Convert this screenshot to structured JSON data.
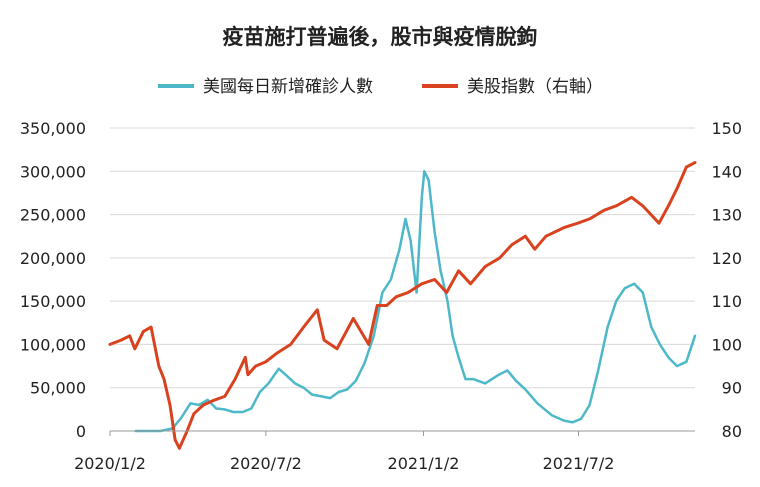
{
  "chart_data": {
    "type": "line",
    "title": "疫苗施打普遍後，股市與疫情脫鉤",
    "x_tick_labels": [
      "2020/1/2",
      "2020/7/2",
      "2021/1/2",
      "2021/7/2"
    ],
    "x_ticks": [
      "2020-01-02",
      "2020-07-02",
      "2021-01-02",
      "2021-07-02"
    ],
    "x_range": [
      "2020-01-02",
      "2021-11-15"
    ],
    "y_left": {
      "range": [
        0,
        350000
      ],
      "ticks": [
        0,
        50000,
        100000,
        150000,
        200000,
        250000,
        300000,
        350000
      ],
      "tick_labels": [
        "0",
        "50,000",
        "100,000",
        "150,000",
        "200,000",
        "250,000",
        "300,000",
        "350,000"
      ]
    },
    "y_right": {
      "range": [
        80,
        150
      ],
      "ticks": [
        80,
        90,
        100,
        110,
        120,
        130,
        140,
        150
      ],
      "tick_labels": [
        "80",
        "90",
        "100",
        "110",
        "120",
        "130",
        "140",
        "150"
      ]
    },
    "grid": "horizontal",
    "legend_position": "top-center",
    "series": [
      {
        "name": "美國每日新增確診人數",
        "axis": "left",
        "color": "#4db8c8",
        "points": [
          [
            "2020-02-01",
            0
          ],
          [
            "2020-03-01",
            0
          ],
          [
            "2020-03-15",
            3000
          ],
          [
            "2020-03-25",
            15000
          ],
          [
            "2020-04-05",
            32000
          ],
          [
            "2020-04-15",
            30000
          ],
          [
            "2020-04-25",
            36000
          ],
          [
            "2020-05-05",
            26000
          ],
          [
            "2020-05-15",
            25000
          ],
          [
            "2020-05-25",
            22000
          ],
          [
            "2020-06-05",
            22000
          ],
          [
            "2020-06-15",
            26000
          ],
          [
            "2020-06-25",
            45000
          ],
          [
            "2020-07-05",
            55000
          ],
          [
            "2020-07-17",
            72000
          ],
          [
            "2020-07-25",
            65000
          ],
          [
            "2020-08-05",
            55000
          ],
          [
            "2020-08-15",
            50000
          ],
          [
            "2020-08-25",
            42000
          ],
          [
            "2020-09-05",
            40000
          ],
          [
            "2020-09-15",
            38000
          ],
          [
            "2020-09-25",
            45000
          ],
          [
            "2020-10-05",
            48000
          ],
          [
            "2020-10-15",
            58000
          ],
          [
            "2020-10-25",
            78000
          ],
          [
            "2020-11-05",
            110000
          ],
          [
            "2020-11-15",
            160000
          ],
          [
            "2020-11-25",
            175000
          ],
          [
            "2020-12-05",
            210000
          ],
          [
            "2020-12-12",
            245000
          ],
          [
            "2020-12-18",
            220000
          ],
          [
            "2020-12-25",
            160000
          ],
          [
            "2020-12-31",
            270000
          ],
          [
            "2021-01-03",
            300000
          ],
          [
            "2021-01-08",
            290000
          ],
          [
            "2021-01-15",
            230000
          ],
          [
            "2021-01-22",
            185000
          ],
          [
            "2021-01-30",
            150000
          ],
          [
            "2021-02-05",
            110000
          ],
          [
            "2021-02-12",
            85000
          ],
          [
            "2021-02-20",
            60000
          ],
          [
            "2021-03-01",
            60000
          ],
          [
            "2021-03-15",
            55000
          ],
          [
            "2021-03-31",
            65000
          ],
          [
            "2021-04-10",
            70000
          ],
          [
            "2021-04-20",
            58000
          ],
          [
            "2021-05-01",
            48000
          ],
          [
            "2021-05-15",
            32000
          ],
          [
            "2021-06-01",
            18000
          ],
          [
            "2021-06-15",
            12000
          ],
          [
            "2021-06-25",
            10000
          ],
          [
            "2021-07-05",
            14000
          ],
          [
            "2021-07-15",
            30000
          ],
          [
            "2021-07-25",
            70000
          ],
          [
            "2021-08-05",
            120000
          ],
          [
            "2021-08-15",
            150000
          ],
          [
            "2021-08-25",
            165000
          ],
          [
            "2021-09-05",
            170000
          ],
          [
            "2021-09-15",
            160000
          ],
          [
            "2021-09-25",
            120000
          ],
          [
            "2021-10-05",
            100000
          ],
          [
            "2021-10-15",
            85000
          ],
          [
            "2021-10-25",
            75000
          ],
          [
            "2021-11-05",
            80000
          ],
          [
            "2021-11-15",
            110000
          ]
        ]
      },
      {
        "name": "美股指數（右軸）",
        "axis": "right",
        "color": "#d9421f",
        "points": [
          [
            "2020-01-02",
            100
          ],
          [
            "2020-01-15",
            101
          ],
          [
            "2020-01-25",
            102
          ],
          [
            "2020-01-31",
            99
          ],
          [
            "2020-02-10",
            103
          ],
          [
            "2020-02-19",
            104
          ],
          [
            "2020-02-28",
            95
          ],
          [
            "2020-03-05",
            92
          ],
          [
            "2020-03-12",
            86
          ],
          [
            "2020-03-18",
            78
          ],
          [
            "2020-03-23",
            76
          ],
          [
            "2020-04-01",
            80
          ],
          [
            "2020-04-09",
            84
          ],
          [
            "2020-04-20",
            86
          ],
          [
            "2020-05-01",
            87
          ],
          [
            "2020-05-15",
            88
          ],
          [
            "2020-05-27",
            92
          ],
          [
            "2020-06-08",
            97
          ],
          [
            "2020-06-11",
            93
          ],
          [
            "2020-06-20",
            95
          ],
          [
            "2020-07-02",
            96
          ],
          [
            "2020-07-15",
            98
          ],
          [
            "2020-07-31",
            100
          ],
          [
            "2020-08-15",
            104
          ],
          [
            "2020-08-31",
            108
          ],
          [
            "2020-09-08",
            101
          ],
          [
            "2020-09-23",
            99
          ],
          [
            "2020-10-12",
            106
          ],
          [
            "2020-10-30",
            100
          ],
          [
            "2020-11-09",
            109
          ],
          [
            "2020-11-20",
            109
          ],
          [
            "2020-12-01",
            111
          ],
          [
            "2020-12-15",
            112
          ],
          [
            "2020-12-31",
            114
          ],
          [
            "2021-01-15",
            115
          ],
          [
            "2021-01-29",
            112
          ],
          [
            "2021-02-12",
            117
          ],
          [
            "2021-02-26",
            114
          ],
          [
            "2021-03-15",
            118
          ],
          [
            "2021-04-01",
            120
          ],
          [
            "2021-04-15",
            123
          ],
          [
            "2021-05-01",
            125
          ],
          [
            "2021-05-12",
            122
          ],
          [
            "2021-05-25",
            125
          ],
          [
            "2021-06-15",
            127
          ],
          [
            "2021-07-01",
            128
          ],
          [
            "2021-07-15",
            129
          ],
          [
            "2021-08-01",
            131
          ],
          [
            "2021-08-15",
            132
          ],
          [
            "2021-09-02",
            134
          ],
          [
            "2021-09-15",
            132
          ],
          [
            "2021-10-04",
            128
          ],
          [
            "2021-10-15",
            132
          ],
          [
            "2021-10-25",
            136
          ],
          [
            "2021-11-05",
            141
          ],
          [
            "2021-11-15",
            142
          ]
        ]
      }
    ]
  }
}
